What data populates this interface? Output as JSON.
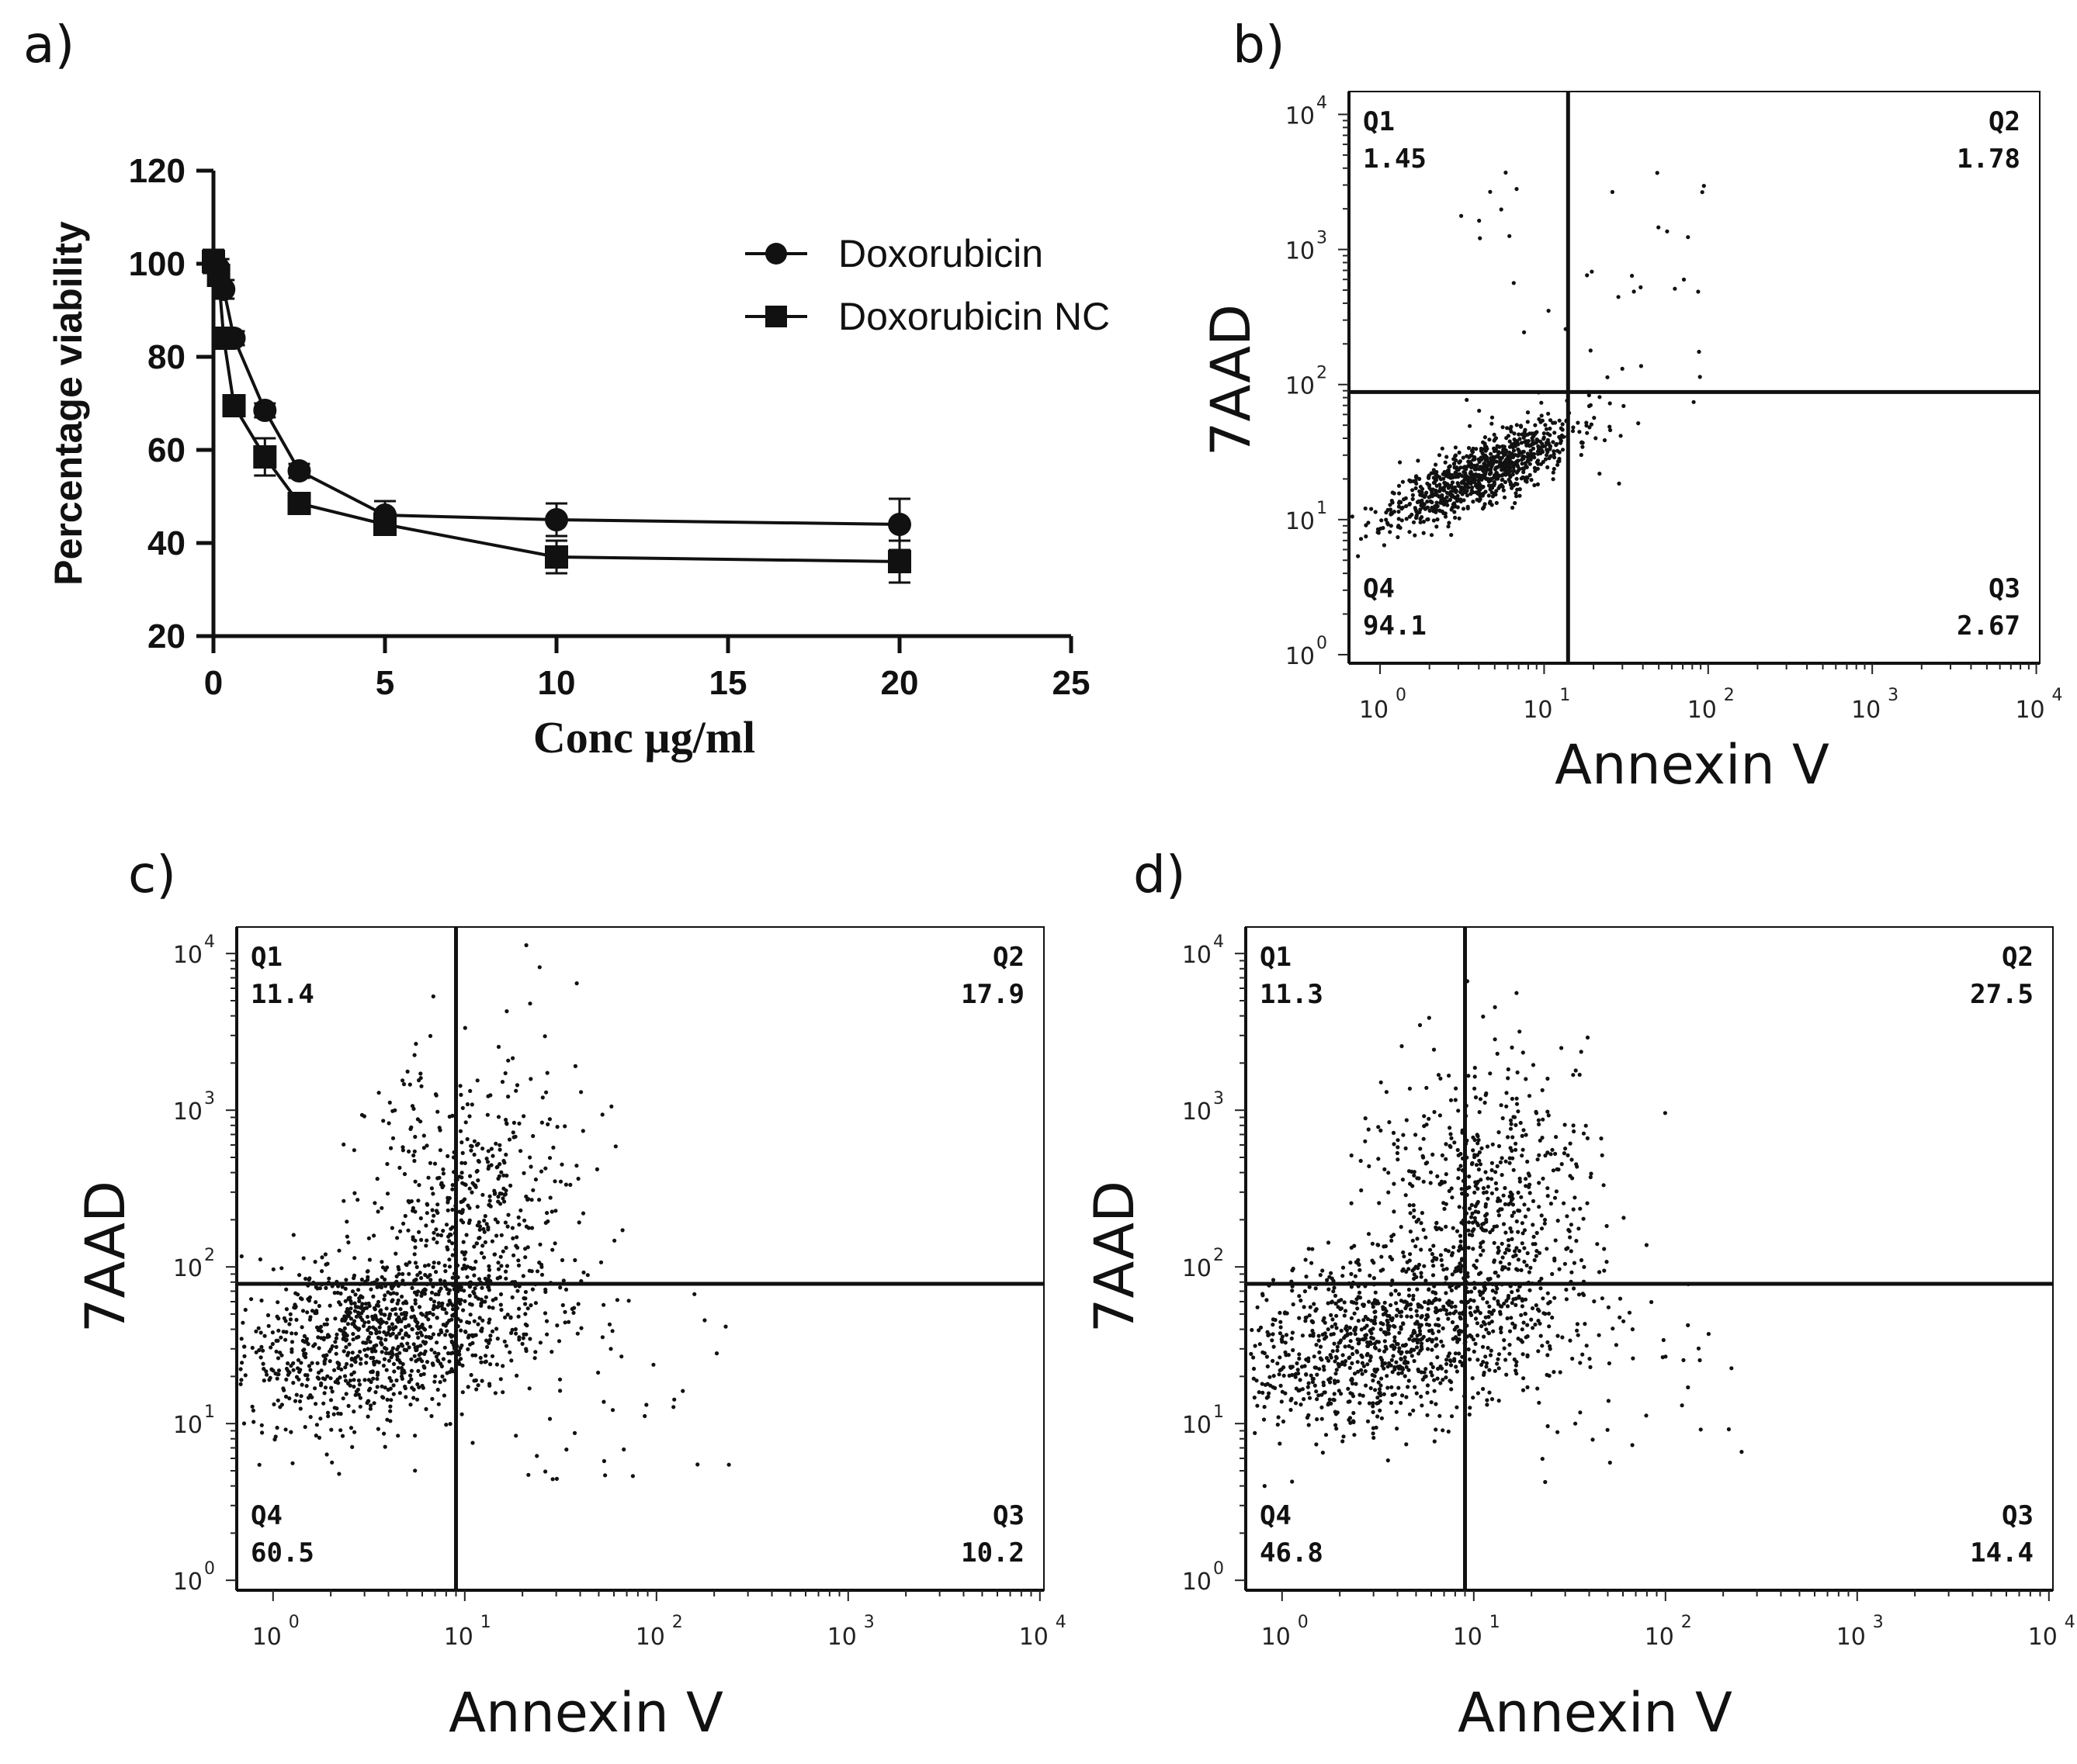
{
  "chart_data": [
    {
      "panel": "a)",
      "type": "line",
      "xlabel": "Conc µg/ml",
      "ylabel": "Percentage viability",
      "xlim": [
        0,
        25
      ],
      "ylim": [
        20,
        120
      ],
      "xticks": [
        "0",
        "5",
        "10",
        "15",
        "20",
        "25"
      ],
      "yticks": [
        "20",
        "40",
        "60",
        "80",
        "100",
        "120"
      ],
      "legend_position": "top-right",
      "series": [
        {
          "name": "Doxorubicin",
          "marker": "circle",
          "x": [
            0.0,
            0.15,
            0.3,
            0.6,
            1.5,
            2.5,
            5,
            10,
            20
          ],
          "y": [
            100.5,
            99,
            94.5,
            84,
            68.5,
            55.5,
            46,
            45,
            44
          ],
          "err": [
            2,
            2,
            2,
            1.5,
            1.5,
            1.5,
            3,
            3.5,
            5.5
          ]
        },
        {
          "name": "Doxorubicin NC",
          "marker": "square",
          "x": [
            0.0,
            0.15,
            0.3,
            0.6,
            1.5,
            2.5,
            5,
            10,
            20
          ],
          "y": [
            100.5,
            97.5,
            84,
            69.5,
            58.5,
            48.5,
            44,
            37,
            36
          ],
          "err": [
            2.5,
            2,
            1.5,
            1.5,
            4,
            1.5,
            1.5,
            3.5,
            4.5
          ]
        }
      ]
    },
    {
      "panel": "b)",
      "type": "scatter",
      "xlabel": "Annexin V",
      "ylabel": "7AAD",
      "scale": "log",
      "decade_labels": [
        "10",
        "10",
        "10",
        "10",
        "10"
      ],
      "decade_exponents": [
        "0",
        "1",
        "2",
        "3",
        "4"
      ],
      "gate": {
        "x": 14,
        "y": 88
      },
      "quadrants": [
        {
          "name": "Q1",
          "value": "1.45"
        },
        {
          "name": "Q2",
          "value": "1.78"
        },
        {
          "name": "Q3",
          "value": "2.67"
        },
        {
          "name": "Q4",
          "value": "94.1"
        }
      ]
    },
    {
      "panel": "c)",
      "type": "scatter",
      "xlabel": "Annexin V",
      "ylabel": "7AAD",
      "scale": "log",
      "decade_labels": [
        "10",
        "10",
        "10",
        "10",
        "10"
      ],
      "decade_exponents": [
        "0",
        "1",
        "2",
        "3",
        "4"
      ],
      "gate": {
        "x": 9,
        "y": 78
      },
      "quadrants": [
        {
          "name": "Q1",
          "value": "11.4"
        },
        {
          "name": "Q2",
          "value": "17.9"
        },
        {
          "name": "Q3",
          "value": "10.2"
        },
        {
          "name": "Q4",
          "value": "60.5"
        }
      ]
    },
    {
      "panel": "d)",
      "type": "scatter",
      "xlabel": "Annexin V",
      "ylabel": "7AAD",
      "scale": "log",
      "decade_labels": [
        "10",
        "10",
        "10",
        "10",
        "10"
      ],
      "decade_exponents": [
        "0",
        "1",
        "2",
        "3",
        "4"
      ],
      "gate": {
        "x": 9,
        "y": 78
      },
      "quadrants": [
        {
          "name": "Q1",
          "value": "11.3"
        },
        {
          "name": "Q2",
          "value": "27.5"
        },
        {
          "name": "Q3",
          "value": "14.4"
        },
        {
          "name": "Q4",
          "value": "46.8"
        }
      ]
    }
  ]
}
